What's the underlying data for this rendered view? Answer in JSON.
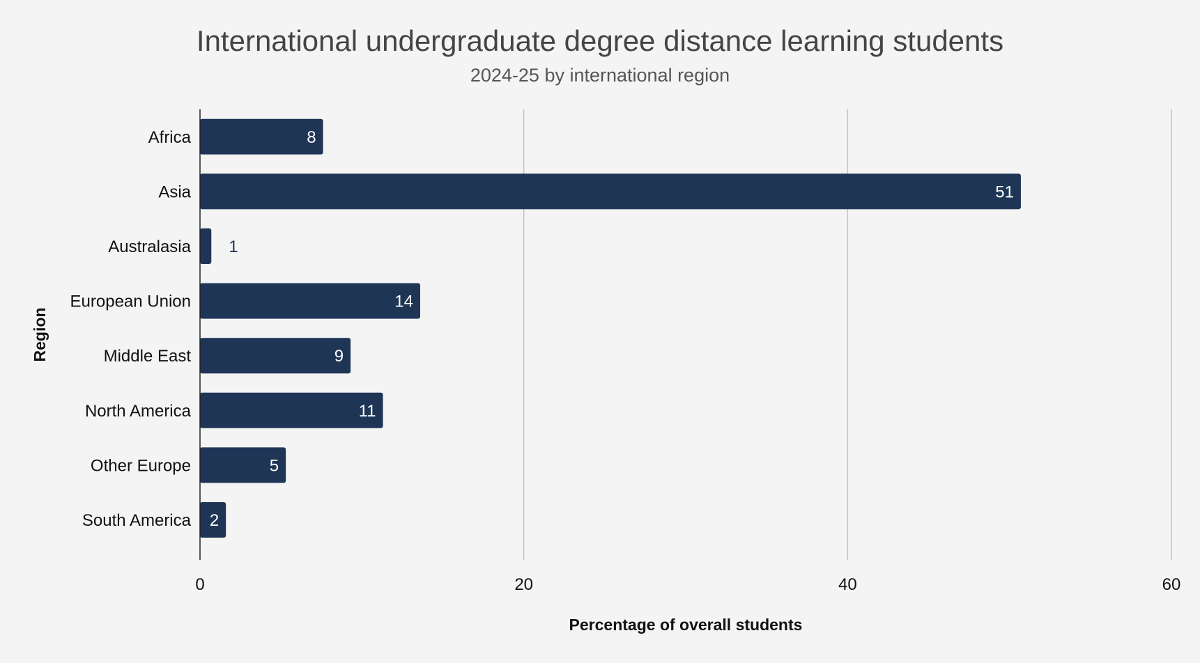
{
  "chart": {
    "title": "International undergraduate degree distance learning students",
    "subtitle": "2024-25 by international region"
  },
  "colors": {
    "background": "#f4f4f4",
    "bar": "#1e3556",
    "grid": "#c2c2c2",
    "axis": "#222222",
    "label_inside": "#ffffff",
    "label_outside": "#1e3556"
  },
  "chart_data": {
    "type": "bar",
    "orientation": "horizontal",
    "title": "International undergraduate degree distance learning students",
    "subtitle": "2024-25 by international region",
    "xlabel": "Percentage of overall students",
    "ylabel": "Region",
    "categories": [
      "Africa",
      "Asia",
      "Australasia",
      "European Union",
      "Middle East",
      "North America",
      "Other Europe",
      "South America"
    ],
    "values": [
      7.6,
      50.7,
      0.7,
      13.6,
      9.3,
      11.3,
      5.3,
      1.6
    ],
    "data_labels": [
      "8",
      "51",
      "1",
      "14",
      "9",
      "11",
      "5",
      "2"
    ],
    "xlim": [
      0,
      60
    ],
    "xticks": [
      0,
      20,
      40,
      60
    ],
    "xtick_labels": [
      "0",
      "20",
      "40",
      "60"
    ],
    "grid": "vertical",
    "legend": "none"
  }
}
